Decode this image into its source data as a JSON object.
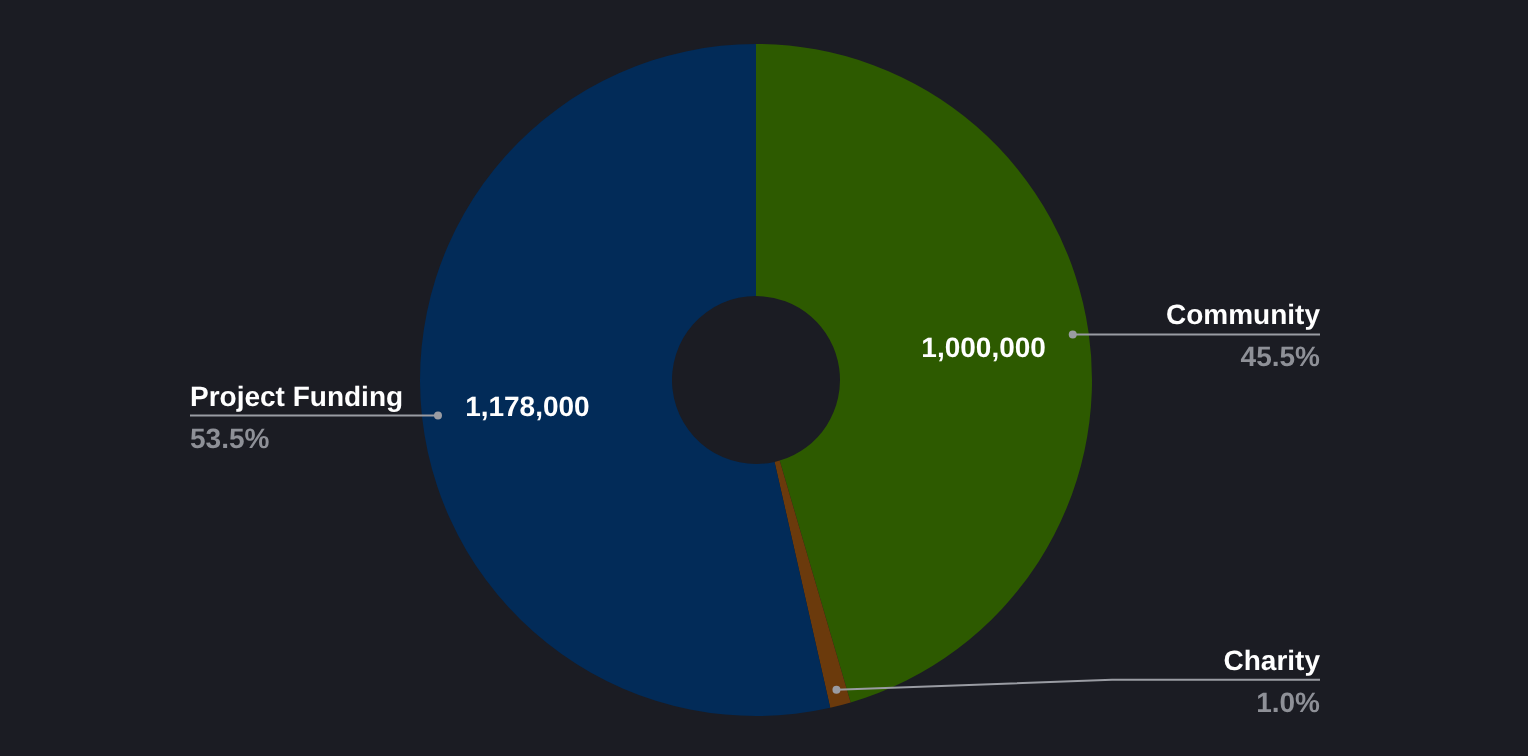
{
  "chart_data": {
    "type": "donut",
    "categories": [
      "Community",
      "Charity",
      "Project Funding"
    ],
    "values": [
      1000000,
      22000,
      1178000
    ],
    "colors": [
      "#2d5a00",
      "#6b3a0c",
      "#022b58"
    ],
    "value_labels": [
      "1,000,000",
      null,
      "1,178,000"
    ],
    "annotations": [
      {
        "text": "45.5%",
        "x": "Community"
      },
      {
        "text": "1.0%",
        "x": "Charity"
      },
      {
        "text": "53.5%",
        "x": "Project Funding"
      }
    ],
    "legend": false
  }
}
